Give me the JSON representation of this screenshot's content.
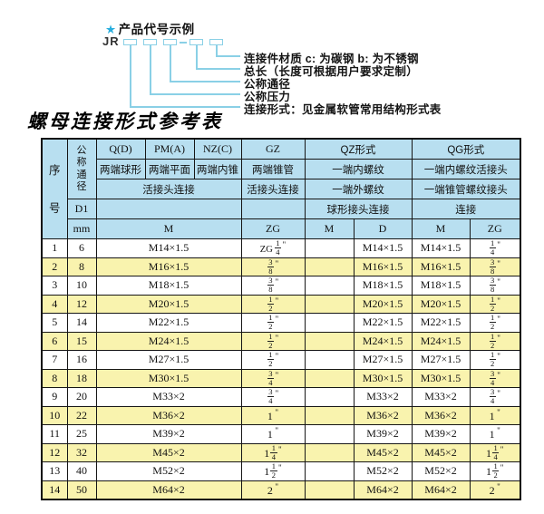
{
  "colors": {
    "accent_cyan": "#8ad0e6",
    "star_blue": "#28aede",
    "header_blue": "#b8dff0",
    "row_yellow": "#f9f3ae",
    "border": "#161616"
  },
  "diagram": {
    "star": "★",
    "title": "产品代号示例",
    "code_prefix": "JR",
    "labels": [
      "连接件材质  c: 为碳钢  b: 为不锈钢",
      "总长（长度可根据用户要求定制）",
      "公称通径",
      "公称压力",
      "连接形式：见金属软管常用结构形式表"
    ]
  },
  "table": {
    "title": "螺母连接形式参考表",
    "header": {
      "seq": "序号",
      "dn": "公称通径",
      "d1": "D1",
      "mm": "mm",
      "m_span": "M",
      "zg_span": "ZG",
      "qz_m": "M",
      "qz_d": "D",
      "qg_m": "M",
      "qg_zg": "ZG",
      "codes": [
        "Q(D)",
        "PM(A)",
        "NZ(C)",
        "GZ",
        "QZ形式",
        "QG形式"
      ],
      "descs": [
        "两端球形",
        "两端平面",
        "两端内锥",
        "两端锥管",
        "一端内螺纹",
        "一端内螺纹活接头"
      ],
      "row3": [
        "活接头连接",
        "活接头连接",
        "一端外螺纹",
        "一端锥管螺纹接头"
      ],
      "row4": [
        "球形接头连接",
        "连接"
      ]
    },
    "rows": [
      {
        "seq": "1",
        "dn": "6",
        "m": "M14×1.5",
        "zg": {
          "prefix": "ZG",
          "num": "1",
          "den": "4",
          "unit": "\""
        },
        "qz_m": "",
        "qz_d": "M14×1.5",
        "qg_m": "M14×1.5",
        "qg_zg": {
          "num": "1",
          "den": "4",
          "unit": "\""
        }
      },
      {
        "seq": "2",
        "dn": "8",
        "m": "M16×1.5",
        "zg": {
          "num": "3",
          "den": "8",
          "unit": "\""
        },
        "qz_m": "",
        "qz_d": "M16×1.5",
        "qg_m": "M16×1.5",
        "qg_zg": {
          "num": "3",
          "den": "8",
          "unit": "\""
        }
      },
      {
        "seq": "3",
        "dn": "10",
        "m": "M18×1.5",
        "zg": {
          "num": "3",
          "den": "8",
          "unit": "\""
        },
        "qz_m": "",
        "qz_d": "M18×1.5",
        "qg_m": "M18×1.5",
        "qg_zg": {
          "num": "3",
          "den": "8",
          "unit": "\""
        }
      },
      {
        "seq": "4",
        "dn": "12",
        "m": "M20×1.5",
        "zg": {
          "num": "1",
          "den": "2",
          "unit": "\""
        },
        "qz_m": "",
        "qz_d": "M20×1.5",
        "qg_m": "M20×1.5",
        "qg_zg": {
          "num": "1",
          "den": "2",
          "unit": "\""
        }
      },
      {
        "seq": "5",
        "dn": "14",
        "m": "M22×1.5",
        "zg": {
          "num": "1",
          "den": "2",
          "unit": "\""
        },
        "qz_m": "",
        "qz_d": "M22×1.5",
        "qg_m": "M22×1.5",
        "qg_zg": {
          "num": "1",
          "den": "2",
          "unit": "\""
        }
      },
      {
        "seq": "6",
        "dn": "15",
        "m": "M24×1.5",
        "zg": {
          "num": "1",
          "den": "2",
          "unit": "\""
        },
        "qz_m": "",
        "qz_d": "M24×1.5",
        "qg_m": "M24×1.5",
        "qg_zg": {
          "num": "1",
          "den": "2",
          "unit": "\""
        }
      },
      {
        "seq": "7",
        "dn": "16",
        "m": "M27×1.5",
        "zg": {
          "num": "1",
          "den": "2",
          "unit": "\""
        },
        "qz_m": "",
        "qz_d": "M27×1.5",
        "qg_m": "M27×1.5",
        "qg_zg": {
          "num": "1",
          "den": "2",
          "unit": "\""
        }
      },
      {
        "seq": "8",
        "dn": "18",
        "m": "M30×1.5",
        "zg": {
          "num": "3",
          "den": "4",
          "unit": "\""
        },
        "qz_m": "",
        "qz_d": "M30×1.5",
        "qg_m": "M30×1.5",
        "qg_zg": {
          "num": "3",
          "den": "4",
          "unit": "\""
        }
      },
      {
        "seq": "9",
        "dn": "20",
        "m": "M33×2",
        "zg": {
          "num": "3",
          "den": "4",
          "unit": "\""
        },
        "qz_m": "",
        "qz_d": "M33×2",
        "qg_m": "M33×2",
        "qg_zg": {
          "num": "3",
          "den": "4",
          "unit": "\""
        }
      },
      {
        "seq": "10",
        "dn": "22",
        "m": "M36×2",
        "zg": {
          "whole": "1",
          "unit": "\""
        },
        "qz_m": "",
        "qz_d": "M36×2",
        "qg_m": "M36×2",
        "qg_zg": {
          "whole": "1",
          "unit": "\""
        }
      },
      {
        "seq": "11",
        "dn": "25",
        "m": "M39×2",
        "zg": {
          "whole": "1",
          "unit": "\""
        },
        "qz_m": "",
        "qz_d": "M39×2",
        "qg_m": "M39×2",
        "qg_zg": {
          "whole": "1",
          "unit": "\""
        }
      },
      {
        "seq": "12",
        "dn": "32",
        "m": "M45×2",
        "zg": {
          "whole": "1",
          "num": "1",
          "den": "4",
          "unit": "\""
        },
        "qz_m": "",
        "qz_d": "M45×2",
        "qg_m": "M45×2",
        "qg_zg": {
          "whole": "1",
          "num": "1",
          "den": "4",
          "unit": "\""
        }
      },
      {
        "seq": "13",
        "dn": "40",
        "m": "M52×2",
        "zg": {
          "whole": "1",
          "num": "1",
          "den": "2",
          "unit": "\""
        },
        "qz_m": "",
        "qz_d": "M52×2",
        "qg_m": "M52×2",
        "qg_zg": {
          "whole": "1",
          "num": "1",
          "den": "2",
          "unit": "\""
        }
      },
      {
        "seq": "14",
        "dn": "50",
        "m": "M64×2",
        "zg": {
          "whole": "2",
          "unit": "\""
        },
        "qz_m": "",
        "qz_d": "M64×2",
        "qg_m": "M64×2",
        "qg_zg": {
          "whole": "2",
          "unit": "\""
        }
      }
    ]
  }
}
